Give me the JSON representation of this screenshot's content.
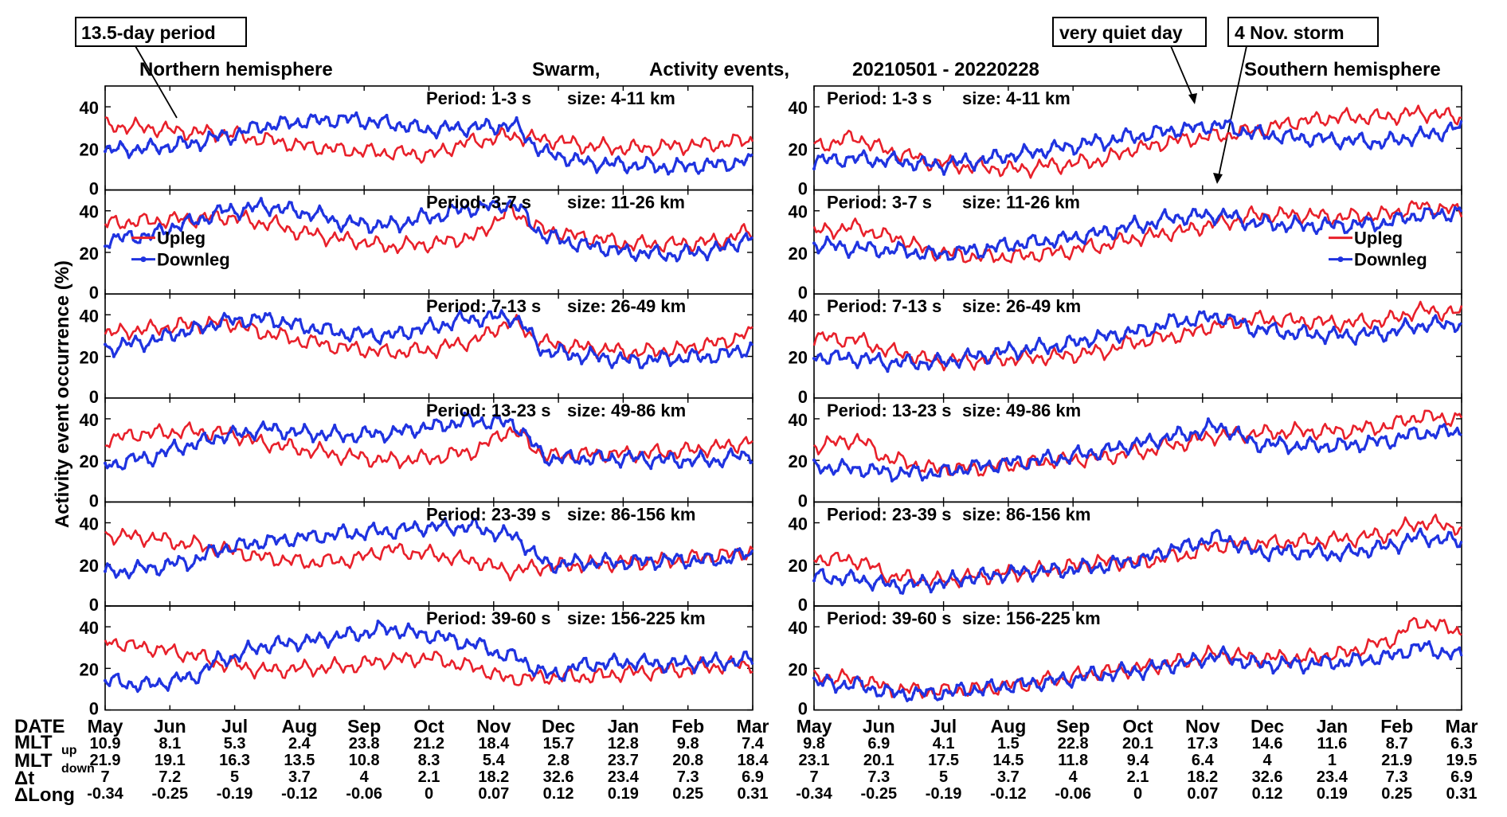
{
  "figure": {
    "header": {
      "swarm": "Swarm,",
      "activity": "Activity events,",
      "dates": "20210501 - 20220228"
    },
    "ylabel": "Activity event occurrence (%)",
    "callouts": {
      "period_13_5": "13.5-day period",
      "quiet_day": "very quiet day",
      "storm": "4 Nov. storm"
    },
    "legend": {
      "upleg": "Upleg",
      "downleg": "Downleg"
    },
    "colors": {
      "upleg": "#e8202a",
      "downleg": "#1f33e0"
    },
    "hemispheres": [
      {
        "title": "Northern hemisphere"
      },
      {
        "title": "Southern hemisphere"
      }
    ],
    "table": {
      "row_labels": [
        "DATE",
        "MLT",
        "MLT",
        "Δt",
        "ΔLong"
      ],
      "mlt_up_sup": "up",
      "mlt_down_sub": "down",
      "months": [
        "May",
        "Jun",
        "Jul",
        "Aug",
        "Sep",
        "Oct",
        "Nov",
        "Dec",
        "Jan",
        "Feb",
        "Mar"
      ],
      "north": {
        "mlt_up": [
          "10.9",
          "8.1",
          "5.3",
          "2.4",
          "23.8",
          "21.2",
          "18.4",
          "15.7",
          "12.8",
          "9.8",
          "7.4"
        ],
        "mlt_down": [
          "21.9",
          "19.1",
          "16.3",
          "13.5",
          "10.8",
          "8.3",
          "5.4",
          "2.8",
          "23.7",
          "20.8",
          "18.4"
        ],
        "dt": [
          "7",
          "7.2",
          "5",
          "3.7",
          "4",
          "2.1",
          "18.2",
          "32.6",
          "23.4",
          "7.3",
          "6.9"
        ],
        "dlong": [
          "-0.34",
          "-0.25",
          "-0.19",
          "-0.12",
          "-0.06",
          "0",
          "0.07",
          "0.12",
          "0.19",
          "0.25",
          "0.31"
        ]
      },
      "south": {
        "mlt_up": [
          "9.8",
          "6.9",
          "4.1",
          "1.5",
          "22.8",
          "20.1",
          "17.3",
          "14.6",
          "11.6",
          "8.7",
          "6.3"
        ],
        "mlt_down": [
          "23.1",
          "20.1",
          "17.5",
          "14.5",
          "11.8",
          "9.4",
          "6.4",
          "4",
          "1",
          "21.9",
          "19.5"
        ],
        "dt": [
          "7",
          "7.3",
          "5",
          "3.7",
          "4",
          "2.1",
          "18.2",
          "32.6",
          "23.4",
          "7.3",
          "6.9"
        ],
        "dlong": [
          "-0.34",
          "-0.25",
          "-0.19",
          "-0.12",
          "-0.06",
          "0",
          "0.07",
          "0.12",
          "0.19",
          "0.25",
          "0.31"
        ]
      }
    }
  },
  "chart_data": {
    "type": "line",
    "x_unit": "month",
    "x_range": [
      "2021-05-01",
      "2022-03-01"
    ],
    "months": [
      "May",
      "Jun",
      "Jul",
      "Aug",
      "Sep",
      "Oct",
      "Nov",
      "Dec",
      "Jan",
      "Feb",
      "Mar"
    ],
    "ylim": [
      0,
      50
    ],
    "yticks": [
      "0",
      "20",
      "40"
    ],
    "panels": [
      {
        "period": "Period: 1-3 s",
        "size": "size: 4-11 km",
        "north": {
          "upleg": [
            31,
            30,
            28,
            27,
            24,
            21,
            19,
            18,
            17,
            23,
            26,
            24,
            21,
            20,
            21,
            22,
            24
          ],
          "downleg": [
            19,
            20,
            22,
            26,
            31,
            33,
            34,
            32,
            29,
            30,
            31,
            17,
            13,
            12,
            11,
            12,
            14
          ]
        },
        "south": {
          "upleg": [
            21,
            25,
            18,
            13,
            11,
            10,
            12,
            14,
            20,
            24,
            26,
            29,
            33,
            35,
            35,
            37,
            35
          ],
          "downleg": [
            14,
            15,
            14,
            12,
            14,
            17,
            20,
            23,
            26,
            29,
            31,
            27,
            25,
            24,
            23,
            26,
            30
          ]
        }
      },
      {
        "period": "Period: 3-7 s",
        "size": "size: 11-26 km",
        "north": {
          "upleg": [
            34,
            35,
            36,
            37,
            34,
            29,
            26,
            23,
            24,
            27,
            39,
            30,
            27,
            24,
            24,
            25,
            30
          ],
          "downleg": [
            26,
            28,
            34,
            40,
            42,
            39,
            34,
            33,
            37,
            41,
            43,
            27,
            23,
            20,
            19,
            21,
            27
          ],
          "legend": "left"
        },
        "south": {
          "upleg": [
            30,
            32,
            27,
            20,
            18,
            18,
            20,
            23,
            27,
            30,
            34,
            38,
            38,
            37,
            38,
            42,
            40
          ],
          "downleg": [
            24,
            22,
            21,
            19,
            21,
            24,
            26,
            29,
            33,
            37,
            38,
            34,
            33,
            33,
            34,
            38,
            39
          ],
          "legend": "right"
        }
      },
      {
        "period": "Period: 7-13 s",
        "size": "size: 26-49 km",
        "north": {
          "upleg": [
            31,
            33,
            35,
            36,
            31,
            27,
            24,
            22,
            23,
            27,
            36,
            26,
            24,
            22,
            23,
            26,
            31
          ],
          "downleg": [
            24,
            27,
            32,
            37,
            38,
            34,
            31,
            30,
            34,
            38,
            39,
            22,
            20,
            18,
            19,
            20,
            24
          ]
        },
        "south": {
          "upleg": [
            29,
            28,
            22,
            18,
            18,
            19,
            20,
            22,
            27,
            30,
            35,
            38,
            37,
            36,
            37,
            42,
            41
          ],
          "downleg": [
            20,
            19,
            17,
            17,
            20,
            23,
            25,
            29,
            32,
            37,
            39,
            33,
            31,
            30,
            31,
            35,
            36
          ]
        }
      },
      {
        "period": "Period: 13-23 s",
        "size": "size: 49-86 km",
        "north": {
          "upleg": [
            30,
            33,
            34,
            33,
            28,
            25,
            22,
            20,
            21,
            24,
            34,
            22,
            23,
            23,
            24,
            26,
            29
          ],
          "downleg": [
            18,
            21,
            27,
            32,
            35,
            33,
            32,
            33,
            36,
            39,
            38,
            21,
            21,
            21,
            20,
            20,
            23
          ]
        },
        "south": {
          "upleg": [
            27,
            30,
            20,
            16,
            16,
            18,
            20,
            21,
            24,
            28,
            32,
            33,
            34,
            34,
            36,
            41,
            40
          ],
          "downleg": [
            17,
            16,
            14,
            14,
            17,
            19,
            21,
            24,
            28,
            32,
            36,
            28,
            27,
            27,
            29,
            33,
            34
          ]
        }
      },
      {
        "period": "Period: 23-39 s",
        "size": "size: 86-156 km",
        "north": {
          "upleg": [
            34,
            33,
            30,
            27,
            23,
            21,
            22,
            27,
            25,
            22,
            17,
            19,
            20,
            21,
            22,
            24,
            26
          ],
          "downleg": [
            16,
            18,
            21,
            28,
            31,
            33,
            35,
            36,
            38,
            38,
            34,
            20,
            21,
            21,
            22,
            22,
            25
          ]
        },
        "south": {
          "upleg": [
            23,
            22,
            14,
            12,
            14,
            16,
            18,
            21,
            21,
            24,
            29,
            30,
            31,
            32,
            34,
            40,
            38
          ],
          "downleg": [
            14,
            13,
            10,
            11,
            14,
            16,
            17,
            19,
            22,
            28,
            33,
            26,
            26,
            25,
            28,
            33,
            31
          ]
        }
      },
      {
        "period": "Period: 39-60 s",
        "size": "size: 156-225 km",
        "north": {
          "upleg": [
            33,
            30,
            27,
            22,
            19,
            20,
            21,
            24,
            25,
            21,
            15,
            16,
            16,
            18,
            19,
            21,
            22
          ],
          "downleg": [
            14,
            12,
            15,
            25,
            31,
            33,
            36,
            39,
            36,
            32,
            26,
            17,
            22,
            23,
            22,
            23,
            24
          ]
        },
        "south": {
          "upleg": [
            16,
            15,
            10,
            9,
            10,
            12,
            15,
            18,
            20,
            23,
            27,
            25,
            25,
            27,
            32,
            42,
            38
          ],
          "downleg": [
            13,
            12,
            8,
            8,
            10,
            12,
            14,
            17,
            19,
            22,
            26,
            22,
            22,
            23,
            25,
            30,
            26
          ]
        }
      }
    ]
  }
}
